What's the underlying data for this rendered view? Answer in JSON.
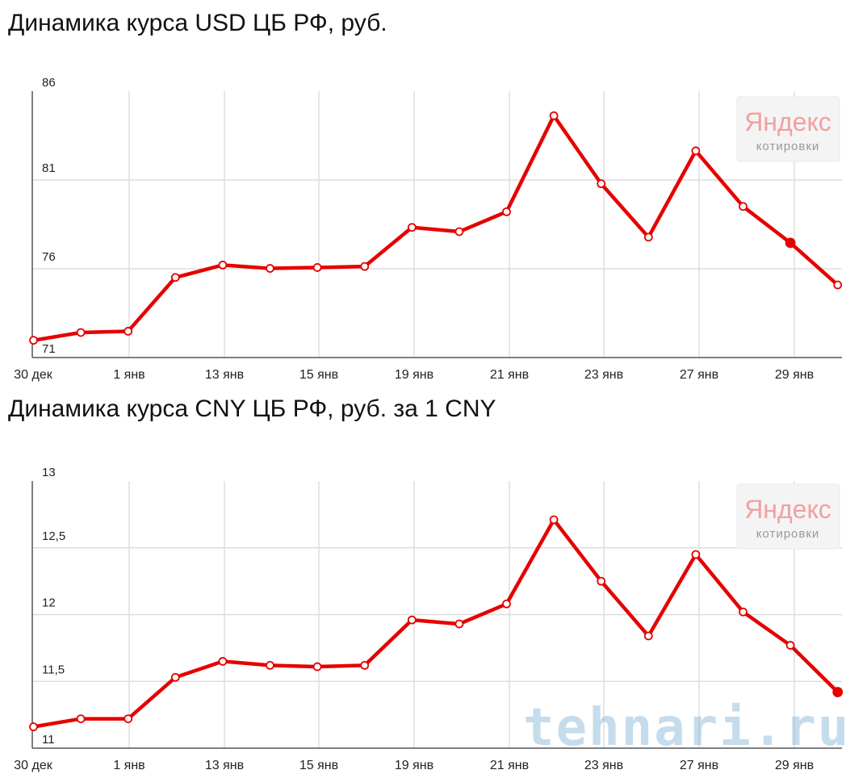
{
  "chart_data": [
    {
      "type": "line",
      "title": "Динамика курса USD ЦБ РФ, руб.",
      "x_labels": [
        "30 дек",
        "1 янв",
        "13 янв",
        "15 янв",
        "19 янв",
        "21 янв",
        "23 янв",
        "27 янв",
        "29 янв"
      ],
      "y_ticks": [
        "86",
        "81",
        "76",
        "71"
      ],
      "ylim": [
        71,
        86
      ],
      "grid": true,
      "series": [
        {
          "color": "#e60000",
          "values": [
            71.97,
            72.41,
            72.48,
            75.51,
            76.21,
            76.02,
            76.07,
            76.13,
            78.33,
            78.09,
            79.21,
            84.62,
            80.79,
            77.78,
            82.64,
            79.51,
            77.46,
            75.09
          ]
        }
      ]
    },
    {
      "type": "line",
      "title": "Динамика курса CNY ЦБ РФ, руб. за 1 CNY",
      "x_labels": [
        "30 дек",
        "1 янв",
        "13 янв",
        "15 янв",
        "19 янв",
        "21 янв",
        "23 янв",
        "27 янв",
        "29 янв"
      ],
      "y_ticks": [
        "13",
        "12,5",
        "12",
        "11,5",
        "11"
      ],
      "ylim": [
        11,
        13
      ],
      "grid": true,
      "series": [
        {
          "color": "#e60000",
          "values": [
            11.16,
            11.22,
            11.22,
            11.53,
            11.65,
            11.62,
            11.61,
            11.62,
            11.96,
            11.93,
            12.08,
            12.71,
            12.25,
            11.84,
            12.45,
            12.02,
            11.77,
            11.42
          ]
        }
      ]
    }
  ],
  "watermark": {
    "brand": "Яндекс",
    "sub": "котировки",
    "site": "tehnari.ru"
  }
}
